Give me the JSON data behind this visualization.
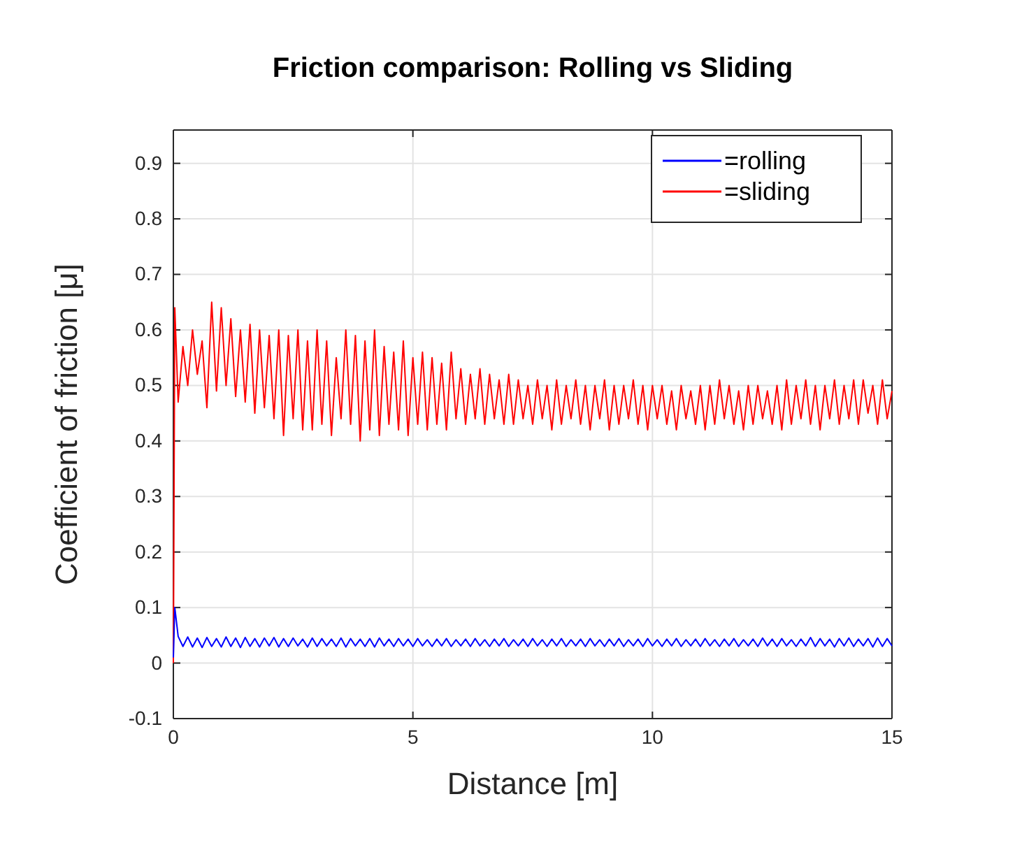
{
  "chart_data": {
    "type": "line",
    "title": "Friction comparison: Rolling vs Sliding",
    "xlabel": "Distance [m]",
    "ylabel": "Coefficient of friction [μ]",
    "xlim": [
      0,
      15
    ],
    "xticks": [
      0,
      5,
      10,
      15
    ],
    "ylim": [
      -0.1,
      0.96
    ],
    "yticks": [
      -0.1,
      0,
      0.1,
      0.2,
      0.3,
      0.4,
      0.5,
      0.6,
      0.7,
      0.8,
      0.9
    ],
    "grid": true,
    "legend": "top right",
    "line_style": "solid",
    "marker": "none",
    "x": [
      0,
      0.03,
      0.1,
      0.2,
      0.3,
      0.4,
      0.5,
      0.6,
      0.7,
      0.8,
      0.9,
      1.0,
      1.1,
      1.2,
      1.3,
      1.4,
      1.5,
      1.6,
      1.7,
      1.8,
      1.9,
      2.0,
      2.1,
      2.2,
      2.3,
      2.4,
      2.5,
      2.6,
      2.7,
      2.8,
      2.9,
      3.0,
      3.1,
      3.2,
      3.3,
      3.4,
      3.5,
      3.6,
      3.7,
      3.8,
      3.9,
      4.0,
      4.1,
      4.2,
      4.3,
      4.4,
      4.5,
      4.6,
      4.7,
      4.8,
      4.9,
      5.0,
      5.1,
      5.2,
      5.3,
      5.4,
      5.5,
      5.6,
      5.7,
      5.8,
      5.9,
      6.0,
      6.1,
      6.2,
      6.3,
      6.4,
      6.5,
      6.6,
      6.7,
      6.8,
      6.9,
      7.0,
      7.1,
      7.2,
      7.3,
      7.4,
      7.5,
      7.6,
      7.7,
      7.8,
      7.9,
      8.0,
      8.1,
      8.2,
      8.3,
      8.4,
      8.5,
      8.6,
      8.7,
      8.8,
      8.9,
      9.0,
      9.1,
      9.2,
      9.3,
      9.4,
      9.5,
      9.6,
      9.7,
      9.8,
      9.9,
      10.0,
      10.1,
      10.2,
      10.3,
      10.4,
      10.5,
      10.6,
      10.7,
      10.8,
      10.9,
      11.0,
      11.1,
      11.2,
      11.3,
      11.4,
      11.5,
      11.6,
      11.7,
      11.8,
      11.9,
      12.0,
      12.1,
      12.2,
      12.3,
      12.4,
      12.5,
      12.6,
      12.7,
      12.8,
      12.9,
      13.0,
      13.1,
      13.2,
      13.3,
      13.4,
      13.5,
      13.6,
      13.7,
      13.8,
      13.9,
      14.0,
      14.1,
      14.2,
      14.3,
      14.4,
      14.5,
      14.6,
      14.7,
      14.8,
      14.9,
      15.0
    ],
    "series": [
      {
        "name": "=rolling",
        "color": "#0000ff",
        "values": [
          0.01,
          0.1,
          0.048,
          0.03,
          0.047,
          0.029,
          0.045,
          0.028,
          0.046,
          0.03,
          0.044,
          0.029,
          0.047,
          0.03,
          0.045,
          0.028,
          0.046,
          0.03,
          0.044,
          0.029,
          0.045,
          0.031,
          0.046,
          0.029,
          0.044,
          0.03,
          0.045,
          0.031,
          0.043,
          0.029,
          0.045,
          0.03,
          0.044,
          0.031,
          0.043,
          0.03,
          0.045,
          0.029,
          0.044,
          0.031,
          0.043,
          0.03,
          0.044,
          0.029,
          0.045,
          0.031,
          0.043,
          0.03,
          0.044,
          0.031,
          0.043,
          0.03,
          0.044,
          0.031,
          0.042,
          0.03,
          0.043,
          0.031,
          0.044,
          0.03,
          0.042,
          0.031,
          0.043,
          0.03,
          0.044,
          0.031,
          0.042,
          0.03,
          0.043,
          0.031,
          0.044,
          0.03,
          0.042,
          0.031,
          0.043,
          0.03,
          0.044,
          0.031,
          0.042,
          0.03,
          0.043,
          0.031,
          0.044,
          0.03,
          0.042,
          0.031,
          0.043,
          0.03,
          0.044,
          0.031,
          0.042,
          0.03,
          0.043,
          0.031,
          0.044,
          0.03,
          0.042,
          0.031,
          0.043,
          0.03,
          0.044,
          0.031,
          0.042,
          0.03,
          0.043,
          0.031,
          0.044,
          0.03,
          0.042,
          0.031,
          0.043,
          0.03,
          0.044,
          0.031,
          0.042,
          0.03,
          0.043,
          0.031,
          0.044,
          0.03,
          0.042,
          0.031,
          0.043,
          0.03,
          0.045,
          0.031,
          0.043,
          0.03,
          0.044,
          0.031,
          0.042,
          0.03,
          0.043,
          0.031,
          0.046,
          0.03,
          0.044,
          0.031,
          0.043,
          0.029,
          0.044,
          0.031,
          0.045,
          0.03,
          0.043,
          0.031,
          0.044,
          0.029,
          0.045,
          0.03,
          0.044,
          0.031
        ]
      },
      {
        "name": "=sliding",
        "color": "#ff0000",
        "values": [
          0,
          0.64,
          0.47,
          0.57,
          0.5,
          0.6,
          0.52,
          0.58,
          0.46,
          0.65,
          0.49,
          0.64,
          0.5,
          0.62,
          0.48,
          0.6,
          0.47,
          0.61,
          0.45,
          0.6,
          0.46,
          0.59,
          0.44,
          0.6,
          0.41,
          0.59,
          0.44,
          0.6,
          0.42,
          0.58,
          0.42,
          0.6,
          0.43,
          0.58,
          0.41,
          0.55,
          0.44,
          0.6,
          0.43,
          0.59,
          0.4,
          0.58,
          0.42,
          0.6,
          0.41,
          0.57,
          0.43,
          0.56,
          0.42,
          0.58,
          0.41,
          0.55,
          0.43,
          0.56,
          0.42,
          0.55,
          0.43,
          0.54,
          0.42,
          0.56,
          0.44,
          0.53,
          0.43,
          0.52,
          0.44,
          0.53,
          0.43,
          0.52,
          0.44,
          0.51,
          0.43,
          0.52,
          0.43,
          0.51,
          0.44,
          0.5,
          0.43,
          0.51,
          0.44,
          0.5,
          0.42,
          0.51,
          0.43,
          0.5,
          0.44,
          0.51,
          0.43,
          0.5,
          0.42,
          0.5,
          0.44,
          0.51,
          0.42,
          0.5,
          0.43,
          0.5,
          0.44,
          0.51,
          0.43,
          0.5,
          0.42,
          0.5,
          0.44,
          0.5,
          0.43,
          0.49,
          0.42,
          0.5,
          0.44,
          0.49,
          0.43,
          0.5,
          0.42,
          0.5,
          0.43,
          0.51,
          0.44,
          0.5,
          0.43,
          0.49,
          0.42,
          0.5,
          0.43,
          0.5,
          0.44,
          0.49,
          0.43,
          0.5,
          0.42,
          0.51,
          0.43,
          0.5,
          0.44,
          0.51,
          0.43,
          0.5,
          0.42,
          0.5,
          0.44,
          0.51,
          0.43,
          0.5,
          0.44,
          0.51,
          0.43,
          0.51,
          0.45,
          0.5,
          0.43,
          0.51,
          0.44,
          0.49
        ]
      }
    ]
  }
}
